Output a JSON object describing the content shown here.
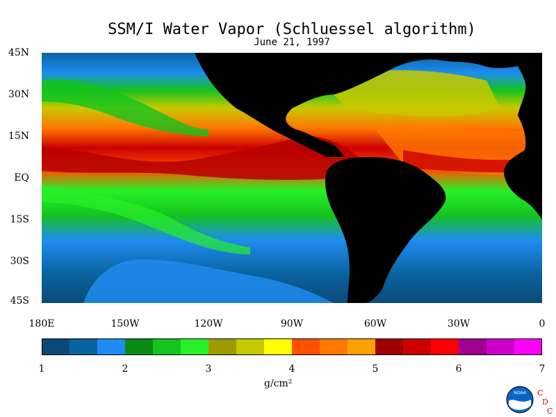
{
  "title": "SSM/I Water Vapor (Schluessel algorithm)",
  "subtitle": "June 21, 1997",
  "lat_labels": [
    "45N",
    "30N",
    "15N",
    "EQ",
    "15S",
    "30S",
    "45S"
  ],
  "lon_labels": [
    "180E",
    "150W",
    "120W",
    "90W",
    "60W",
    "30W",
    "0"
  ],
  "colorbar": {
    "ticks": [
      "1",
      "2",
      "3",
      "4",
      "5",
      "6",
      "7"
    ],
    "unit": "g/cm²",
    "colors": [
      "#0a4a78",
      "#0a64a0",
      "#1e8cf0",
      "#0a8c14",
      "#14c31e",
      "#28f028",
      "#9c9c00",
      "#c8c800",
      "#ffff00",
      "#ff5000",
      "#ff7800",
      "#ffa000",
      "#a00000",
      "#cc0000",
      "#ff0000",
      "#a00090",
      "#cc00c8",
      "#ff00ff"
    ]
  },
  "logo": {
    "noaa_text": "NOAA",
    "cdc_letters": [
      "C",
      "D",
      "C"
    ]
  },
  "legend_range": [
    1,
    7
  ]
}
